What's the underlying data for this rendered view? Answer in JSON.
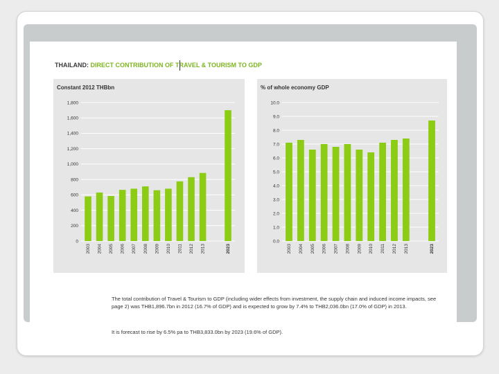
{
  "headline": {
    "country": "THAILAND:",
    "topic": "DIRECT CONTRIBUTION OF TRAVEL & TOURISM TO GDP"
  },
  "captions": {
    "paragraph": "The total contribution of Travel & Tourism to GDP (including wider effects from investment, the supply chain and induced income impacts, see page 2) was THB1,896.7bn in 2012 (16.7% of GDP) and is expected to grow by 7.4% to THB2,036.0bn (17.0% of GDP) in 2013.",
    "forecast": "It is forecast to rise by 6.5% pa to THB3,833.0bn by 2023 (19.6% of GDP)."
  },
  "colors": {
    "bar": "#8ccc14",
    "panel": "#e6e6e6",
    "grid": "#ffffff",
    "accent": "#7db520"
  },
  "chart_data": [
    {
      "type": "bar",
      "title": "Constant 2012 THBbn",
      "xlabel": "",
      "ylabel": "",
      "categories": [
        "2003",
        "2004",
        "2005",
        "2006",
        "2007",
        "2008",
        "2009",
        "2010",
        "2011",
        "2012",
        "2013",
        "2023"
      ],
      "values": [
        580,
        630,
        585,
        665,
        680,
        710,
        660,
        680,
        775,
        830,
        885,
        1700
      ],
      "ylim": [
        0,
        1800
      ],
      "yticks": [
        0,
        200,
        400,
        600,
        800,
        1000,
        1200,
        1400,
        1600,
        1800
      ],
      "ytick_labels": [
        "0",
        "200",
        "400",
        "600",
        "800",
        "1,000",
        "1,200",
        "1,400",
        "1,600",
        "1,800"
      ],
      "grid": true
    },
    {
      "type": "bar",
      "title": "% of whole economy GDP",
      "xlabel": "",
      "ylabel": "",
      "categories": [
        "2003",
        "2004",
        "2005",
        "2006",
        "2007",
        "2008",
        "2009",
        "2010",
        "2011",
        "2012",
        "2013",
        "2023"
      ],
      "values": [
        7.1,
        7.3,
        6.6,
        7.0,
        6.8,
        7.0,
        6.6,
        6.4,
        7.1,
        7.3,
        7.4,
        8.7
      ],
      "ylim": [
        0,
        10
      ],
      "yticks": [
        0,
        1,
        2,
        3,
        4,
        5,
        6,
        7,
        8,
        9,
        10
      ],
      "ytick_labels": [
        "0.0",
        "1.0",
        "2.0",
        "3.0",
        "4.0",
        "5.0",
        "6.0",
        "7.0",
        "8.0",
        "9.0",
        "10.0"
      ],
      "grid": true
    }
  ]
}
